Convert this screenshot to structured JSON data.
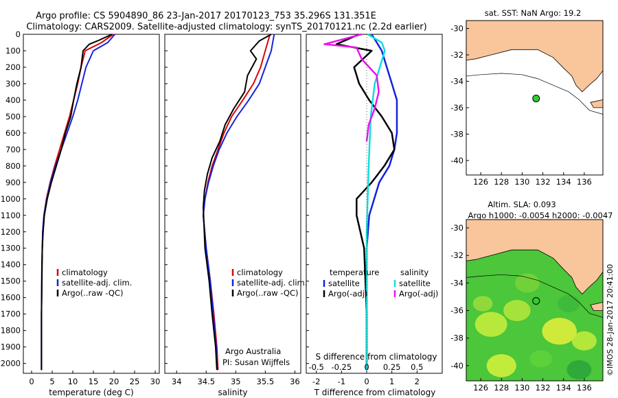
{
  "header": {
    "line1": "Argo profile: CS 5904890_86 23-Jan-2017 20170123_753 35.296S 131.351E",
    "line2": "Climatology: CARS2009. Satellite-adjusted climatology: synTS_20170121.nc (2.2d earlier)"
  },
  "colors": {
    "climatology": "#dd0000",
    "satellite": "#1122dd",
    "argo": "#000000",
    "sal_satellite": "#11dddd",
    "sal_argo": "#ee11ee",
    "land": "#f9c59b",
    "argo_marker": "#33cc33"
  },
  "chart_data": [
    {
      "type": "line",
      "id": "temperature",
      "xlabel": "temperature (deg C)",
      "ylabel": "",
      "xlim": [
        -2,
        31
      ],
      "ylim": [
        2060,
        0
      ],
      "xticks": [
        "0",
        "5",
        "10",
        "15",
        "20",
        "25",
        "30"
      ],
      "yticks": [
        "0",
        "100",
        "200",
        "300",
        "400",
        "500",
        "600",
        "700",
        "800",
        "900",
        "1000",
        "1100",
        "1200",
        "1300",
        "1400",
        "1500",
        "1600",
        "1700",
        "1800",
        "1900",
        "2000"
      ],
      "legend": {
        "position": "bottom-left",
        "entries": [
          "climatology",
          "satellite-adj. clim.",
          "Argo(..raw -QC)"
        ]
      },
      "series": [
        {
          "name": "climatology",
          "color_key": "climatology",
          "x": [
            19.8,
            17,
            13,
            12,
            11.2,
            10.2,
            9.2,
            8,
            6.8,
            5.6,
            4.5,
            3.6,
            3,
            2.7,
            2.5,
            2.4,
            2.4
          ],
          "y": [
            0,
            50,
            100,
            200,
            300,
            400,
            500,
            600,
            700,
            800,
            900,
            1000,
            1100,
            1200,
            1400,
            1700,
            2040
          ]
        },
        {
          "name": "satellite-adj. clim.",
          "color_key": "satellite",
          "x": [
            20.2,
            18.5,
            15,
            13.2,
            12.2,
            11.2,
            10,
            8.6,
            7.2,
            5.8,
            4.6,
            3.7,
            3,
            2.7,
            2.5,
            2.4,
            2.4
          ],
          "y": [
            0,
            50,
            100,
            200,
            300,
            400,
            500,
            600,
            700,
            800,
            900,
            1000,
            1100,
            1200,
            1400,
            1700,
            2040
          ]
        },
        {
          "name": "Argo(..raw -QC)",
          "color_key": "argo",
          "x": [
            19.5,
            16,
            14,
            12.5,
            12,
            11,
            10.2,
            9.5,
            8.2,
            7.2,
            6,
            4.8,
            3.8,
            3.1,
            2.8,
            2.6,
            2.5,
            2.4,
            2.4
          ],
          "y": [
            0,
            40,
            60,
            100,
            200,
            300,
            400,
            500,
            600,
            700,
            800,
            900,
            1000,
            1100,
            1200,
            1300,
            1500,
            1700,
            2040
          ]
        }
      ]
    },
    {
      "type": "line",
      "id": "salinity",
      "xlabel": "salinity",
      "ylabel": "",
      "xlim": [
        33.8,
        36.1
      ],
      "ylim": [
        2060,
        0
      ],
      "xticks": [
        "34",
        "34.5",
        "35",
        "35.5",
        "36"
      ],
      "legend": {
        "position": "bottom-right",
        "entries": [
          "climatology",
          "satellite-adj. clim.",
          "Argo(..raw -QC)"
        ]
      },
      "annotations": [
        "Argo Australia",
        "PI: Susan Wijffels"
      ],
      "series": [
        {
          "name": "climatology",
          "color_key": "climatology",
          "x": [
            35.58,
            35.5,
            35.42,
            35.3,
            35.12,
            34.93,
            34.8,
            34.7,
            34.6,
            34.53,
            34.48,
            34.45,
            34.5,
            34.57,
            34.63,
            34.68,
            34.7
          ],
          "y": [
            0,
            100,
            200,
            300,
            400,
            500,
            600,
            700,
            800,
            900,
            1000,
            1100,
            1300,
            1500,
            1700,
            1900,
            2040
          ]
        },
        {
          "name": "satellite-adj. clim.",
          "color_key": "satellite",
          "x": [
            35.65,
            35.6,
            35.5,
            35.4,
            35.22,
            35.02,
            34.85,
            34.72,
            34.62,
            34.54,
            34.48,
            34.45,
            34.5,
            34.57,
            34.62,
            34.67,
            34.69
          ],
          "y": [
            0,
            100,
            200,
            300,
            400,
            500,
            600,
            700,
            800,
            900,
            1000,
            1100,
            1300,
            1500,
            1700,
            1900,
            2040
          ]
        },
        {
          "name": "Argo(..raw -QC)",
          "color_key": "argo",
          "x": [
            35.6,
            35.4,
            35.25,
            35.35,
            35.2,
            35.15,
            34.97,
            34.82,
            34.73,
            34.6,
            34.52,
            34.47,
            34.45,
            34.48,
            34.55,
            34.6,
            34.66,
            34.68
          ],
          "y": [
            0,
            40,
            100,
            150,
            250,
            350,
            450,
            550,
            650,
            750,
            850,
            950,
            1050,
            1300,
            1500,
            1700,
            1900,
            2040
          ]
        }
      ]
    },
    {
      "type": "line",
      "id": "difference",
      "xlabel": "T difference from climatology",
      "x2label": "S difference from climatology",
      "xlim": [
        -2.4,
        3.0
      ],
      "ylim": [
        2060,
        0
      ],
      "xticks": [
        "-2",
        "-1",
        "0",
        "1",
        "2"
      ],
      "x2ticks": [
        "-0.5",
        "-0.25",
        "0",
        "0.25",
        "0.5"
      ],
      "legend": {
        "position": "bottom",
        "groups": [
          {
            "title": "temperature",
            "entries": [
              "satellite",
              "Argo(-adj)"
            ]
          },
          {
            "title": "salinity",
            "entries": [
              "satellite",
              "Argo(-adj)"
            ]
          }
        ]
      },
      "series": [
        {
          "name": "temperature satellite",
          "color_key": "satellite",
          "x": [
            0.2,
            0.4,
            0.6,
            0.8,
            1,
            1.2,
            1.2,
            1.2,
            1.1,
            0.9,
            0.5,
            0.3,
            0.1,
            0,
            0,
            0
          ],
          "y": [
            0,
            50,
            100,
            200,
            300,
            400,
            500,
            600,
            700,
            800,
            900,
            1000,
            1100,
            1300,
            1700,
            2040
          ]
        },
        {
          "name": "temperature Argo(-adj)",
          "color_key": "argo",
          "x": [
            -0.3,
            -1.2,
            0.2,
            -0.5,
            -0.3,
            0.1,
            0.6,
            1,
            1.1,
            0.7,
            0.2,
            -0.4,
            -0.4,
            -0.1,
            0,
            0
          ],
          "y": [
            0,
            60,
            100,
            200,
            300,
            400,
            500,
            600,
            700,
            800,
            900,
            1000,
            1100,
            1300,
            1700,
            2040
          ]
        },
        {
          "name": "salinity satellite",
          "color_key": "sal_satellite",
          "x": [
            0.01,
            0.15,
            0.18,
            0.13,
            0.08,
            0.04,
            0.02,
            0,
            0
          ],
          "y": [
            0,
            50,
            100,
            200,
            300,
            500,
            800,
            1200,
            2040
          ]
        },
        {
          "name": "salinity Argo(-adj)",
          "color_key": "sal_argo",
          "x": [
            -0.05,
            -0.42,
            -0.1,
            -0.05,
            0.1,
            0.12,
            0.08,
            0.02,
            0
          ],
          "y": [
            0,
            60,
            80,
            150,
            250,
            350,
            450,
            550,
            650
          ]
        }
      ]
    },
    {
      "type": "map",
      "id": "sst_map",
      "title": "sat. SST: NaN Argo: 19.2",
      "xticks": [
        "126",
        "128",
        "130",
        "132",
        "134",
        "136"
      ],
      "yticks": [
        "-30",
        "-32",
        "-34",
        "-36",
        "-38",
        "-40"
      ],
      "marker": {
        "lon": 131.35,
        "lat": -35.3
      }
    },
    {
      "type": "map",
      "id": "sla_map",
      "title": "Altim. SLA: 0.093",
      "subtitle": "Argo h1000: -0.0054 h2000: -0.0047",
      "xticks": [
        "126",
        "128",
        "130",
        "132",
        "134",
        "136"
      ],
      "yticks": [
        "-30",
        "-32",
        "-34",
        "-36",
        "-38",
        "-40"
      ],
      "marker": {
        "lon": 131.35,
        "lat": -35.3
      }
    }
  ],
  "watermark": "©IMOS 28-Jan-2017 20:41:00"
}
